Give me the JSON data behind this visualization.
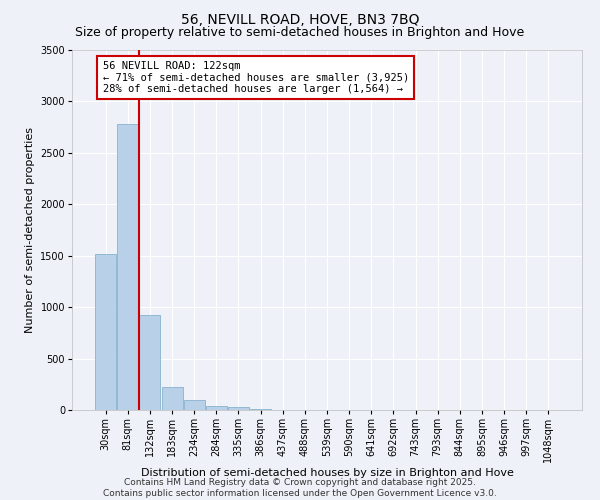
{
  "title": "56, NEVILL ROAD, HOVE, BN3 7BQ",
  "subtitle": "Size of property relative to semi-detached houses in Brighton and Hove",
  "xlabel": "Distribution of semi-detached houses by size in Brighton and Hove",
  "ylabel": "Number of semi-detached properties",
  "categories": [
    "30sqm",
    "81sqm",
    "132sqm",
    "183sqm",
    "234sqm",
    "284sqm",
    "335sqm",
    "386sqm",
    "437sqm",
    "488sqm",
    "539sqm",
    "590sqm",
    "641sqm",
    "692sqm",
    "743sqm",
    "793sqm",
    "844sqm",
    "895sqm",
    "946sqm",
    "997sqm",
    "1048sqm"
  ],
  "values": [
    1520,
    2780,
    920,
    220,
    100,
    40,
    30,
    5,
    2,
    1,
    0,
    0,
    0,
    0,
    0,
    0,
    0,
    0,
    0,
    0,
    0
  ],
  "bar_color": "#b8d0e8",
  "bar_edge_color": "#7aaac8",
  "vline_color": "#cc0000",
  "vline_position": 1.5,
  "annotation_text": "56 NEVILL ROAD: 122sqm\n← 71% of semi-detached houses are smaller (3,925)\n28% of semi-detached houses are larger (1,564) →",
  "annotation_box_color": "#ffffff",
  "annotation_edge_color": "#cc0000",
  "ylim": [
    0,
    3500
  ],
  "yticks": [
    0,
    500,
    1000,
    1500,
    2000,
    2500,
    3000,
    3500
  ],
  "background_color": "#eef2f8",
  "grid_color": "#ffffff",
  "footer_line1": "Contains HM Land Registry data © Crown copyright and database right 2025.",
  "footer_line2": "Contains public sector information licensed under the Open Government Licence v3.0.",
  "title_fontsize": 10,
  "subtitle_fontsize": 9,
  "label_fontsize": 8,
  "tick_fontsize": 7,
  "annotation_fontsize": 7.5,
  "footer_fontsize": 6.5
}
